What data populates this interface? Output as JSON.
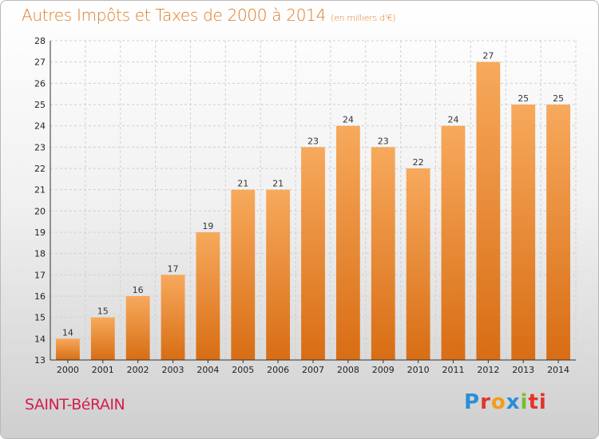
{
  "title": {
    "main": "Autres Impôts et Taxes de 2000 à 2014",
    "unit": "(en milliers d'€)"
  },
  "commune": "SAINT-BéRAIN",
  "logo": {
    "letters": [
      "P",
      "r",
      "o",
      "x",
      "i",
      "ti"
    ],
    "colors": [
      "#2a8ed6",
      "#e2342a",
      "#f39c16",
      "#2a8ed6",
      "#7cbb2c",
      "#e2342a"
    ]
  },
  "chart_data": {
    "type": "bar",
    "title": "Autres Impôts et Taxes de 2000 à 2014",
    "subtitle": "(en milliers d'€)",
    "categories": [
      "2000",
      "2001",
      "2002",
      "2003",
      "2004",
      "2005",
      "2006",
      "2007",
      "2008",
      "2009",
      "2010",
      "2011",
      "2012",
      "2013",
      "2014"
    ],
    "values": [
      14,
      15,
      16,
      17,
      19,
      21,
      21,
      23,
      24,
      23,
      22,
      24,
      27,
      25,
      25
    ],
    "ylim": [
      13,
      28
    ],
    "yticks": [
      13,
      14,
      15,
      16,
      17,
      18,
      19,
      20,
      21,
      22,
      23,
      24,
      25,
      26,
      27,
      28
    ],
    "grid": true,
    "colors": {
      "bar_top": "#f7a95c",
      "bar_bottom": "#d86d14",
      "grid": "#cfcfcf"
    }
  }
}
